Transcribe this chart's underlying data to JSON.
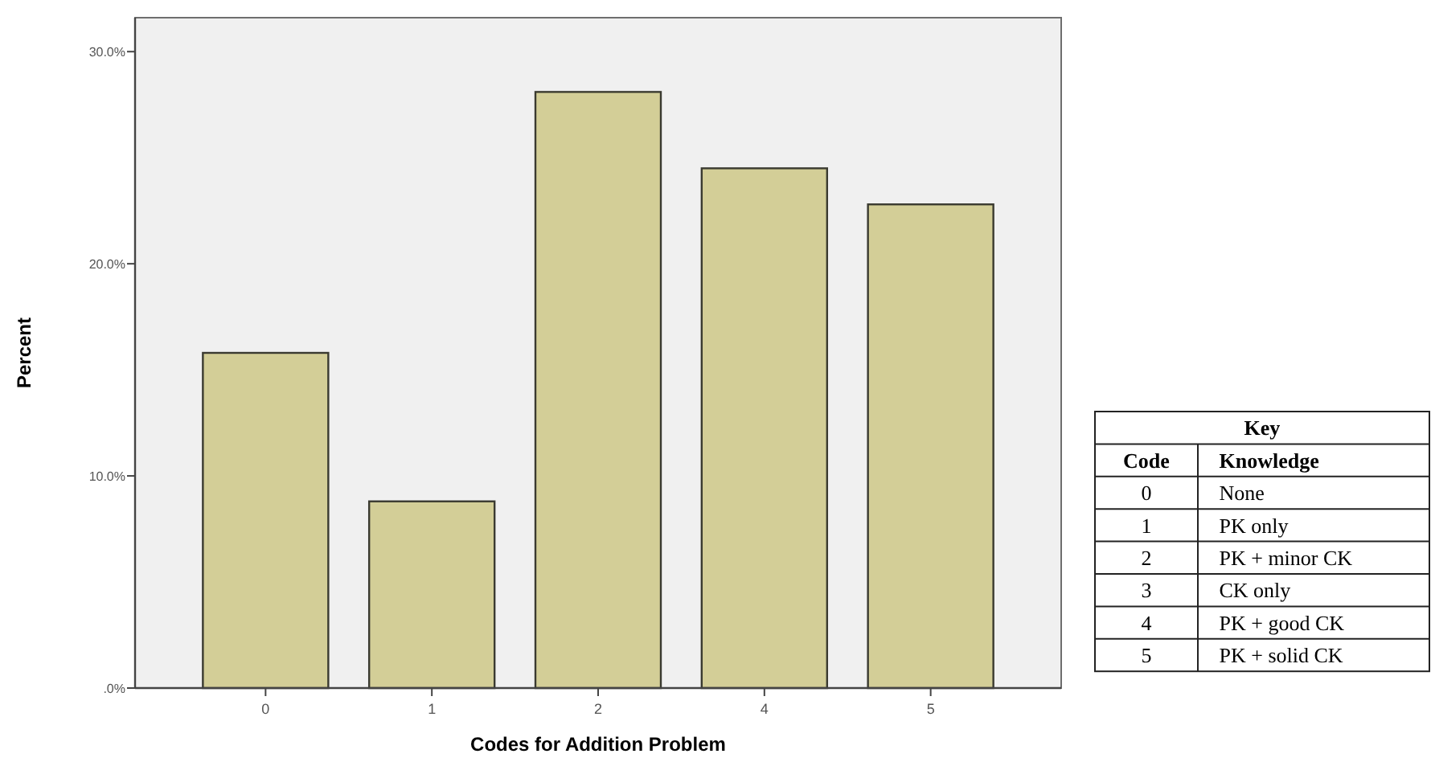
{
  "chart_data": {
    "type": "bar",
    "xlabel": "Codes for Addition Problem",
    "ylabel": "Percent",
    "categories": [
      "0",
      "1",
      "2",
      "4",
      "5"
    ],
    "values": [
      15.8,
      8.8,
      28.1,
      24.5,
      22.8
    ],
    "color": "#d3ce97",
    "ylim": [
      0,
      31.6
    ],
    "yticks": [
      {
        "value": 0,
        "label": ".0%"
      },
      {
        "value": 10,
        "label": "10.0%"
      },
      {
        "value": 20,
        "label": "20.0%"
      },
      {
        "value": 30,
        "label": "30.0%"
      }
    ],
    "grid": false,
    "annotations": [
      "Key",
      "Code",
      "Knowledge",
      "0",
      "None",
      "1",
      "PK only",
      "2",
      "PK + minor CK",
      "3",
      "CK only",
      "4",
      "PK + good CK",
      "5",
      "PK + solid CK"
    ]
  }
}
